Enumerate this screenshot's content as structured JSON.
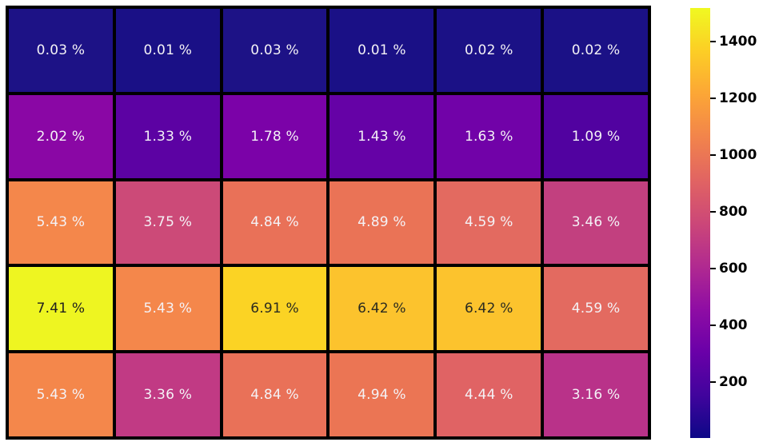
{
  "chart_data": {
    "type": "heatmap",
    "title": "",
    "xlabel": "",
    "ylabel": "",
    "grid": {
      "rows": 5,
      "cols": 6,
      "gridline_color": "#000000"
    },
    "annotation_unit": "%",
    "values_percent": [
      [
        0.03,
        0.01,
        0.03,
        0.01,
        0.02,
        0.02
      ],
      [
        2.02,
        1.33,
        1.78,
        1.43,
        1.63,
        1.09
      ],
      [
        5.43,
        3.75,
        4.84,
        4.89,
        4.59,
        3.46
      ],
      [
        7.41,
        5.43,
        6.91,
        6.42,
        6.42,
        4.59
      ],
      [
        5.43,
        3.36,
        4.84,
        4.94,
        4.44,
        3.16
      ]
    ],
    "cells": [
      [
        {
          "label": "0.03 %",
          "color": "#1d1286",
          "text_color": "#f4f2f6"
        },
        {
          "label": "0.01 %",
          "color": "#1a1086",
          "text_color": "#f4f2f6"
        },
        {
          "label": "0.03 %",
          "color": "#1d1286",
          "text_color": "#f4f2f6"
        },
        {
          "label": "0.01 %",
          "color": "#1a1086",
          "text_color": "#f4f2f6"
        },
        {
          "label": "0.02 %",
          "color": "#1b1186",
          "text_color": "#f4f2f6"
        },
        {
          "label": "0.02 %",
          "color": "#1b1186",
          "text_color": "#f4f2f6"
        }
      ],
      [
        {
          "label": "2.02 %",
          "color": "#8a07a5",
          "text_color": "#f4f2f6"
        },
        {
          "label": "1.33 %",
          "color": "#5c02a3",
          "text_color": "#f4f2f6"
        },
        {
          "label": "1.78 %",
          "color": "#7b02a8",
          "text_color": "#f4f2f6"
        },
        {
          "label": "1.43 %",
          "color": "#6502a6",
          "text_color": "#f4f2f6"
        },
        {
          "label": "1.63 %",
          "color": "#7102a8",
          "text_color": "#f4f2f6"
        },
        {
          "label": "1.09 %",
          "color": "#5102a0",
          "text_color": "#f4f2f6"
        }
      ],
      [
        {
          "label": "5.43 %",
          "color": "#f4874b",
          "text_color": "#f4f2f6"
        },
        {
          "label": "3.75 %",
          "color": "#cc4a78",
          "text_color": "#f4f2f6"
        },
        {
          "label": "4.84 %",
          "color": "#e97158",
          "text_color": "#f4f2f6"
        },
        {
          "label": "4.89 %",
          "color": "#ea7356",
          "text_color": "#f4f2f6"
        },
        {
          "label": "4.59 %",
          "color": "#e36a60",
          "text_color": "#f4f2f6"
        },
        {
          "label": "3.46 %",
          "color": "#c2407f",
          "text_color": "#f4f2f6"
        }
      ],
      [
        {
          "label": "7.41 %",
          "color": "#eef521",
          "text_color": "#1f1f1f"
        },
        {
          "label": "5.43 %",
          "color": "#f4874b",
          "text_color": "#f4f2f6"
        },
        {
          "label": "6.91 %",
          "color": "#fbd324",
          "text_color": "#2b2b20"
        },
        {
          "label": "6.42 %",
          "color": "#fcc32d",
          "text_color": "#2b2b20"
        },
        {
          "label": "6.42 %",
          "color": "#fcc32d",
          "text_color": "#2b2b20"
        },
        {
          "label": "4.59 %",
          "color": "#e36a60",
          "text_color": "#f4f2f6"
        }
      ],
      [
        {
          "label": "5.43 %",
          "color": "#f4874b",
          "text_color": "#f4f2f6"
        },
        {
          "label": "3.36 %",
          "color": "#c13a84",
          "text_color": "#f4f2f6"
        },
        {
          "label": "4.84 %",
          "color": "#e97158",
          "text_color": "#f4f2f6"
        },
        {
          "label": "4.94 %",
          "color": "#eb7554",
          "text_color": "#f4f2f6"
        },
        {
          "label": "4.44 %",
          "color": "#e06364",
          "text_color": "#f4f2f6"
        },
        {
          "label": "3.16 %",
          "color": "#b93289",
          "text_color": "#f4f2f6"
        }
      ]
    ],
    "colorbar": {
      "position": "right",
      "colormap": "plasma",
      "vmin": 2,
      "vmax": 1517,
      "ticks": [
        200,
        400,
        600,
        800,
        1000,
        1200,
        1400
      ],
      "gradient_stops_bottom_to_top": [
        "#0d0887",
        "#41049d",
        "#6a00a8",
        "#8f0da4",
        "#b12a90",
        "#cc4778",
        "#e16462",
        "#f2844b",
        "#fca636",
        "#fcce25",
        "#f0f921"
      ]
    },
    "legend": null,
    "axes_visible": false
  }
}
